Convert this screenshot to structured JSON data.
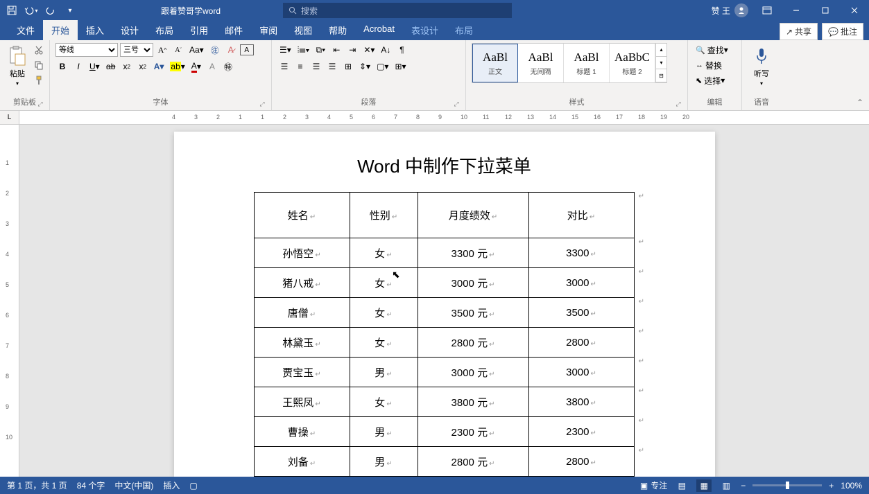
{
  "title_doc": "跟着赞哥学word",
  "search_placeholder": "搜索",
  "user_name": "赞 王",
  "tabs": [
    "文件",
    "开始",
    "插入",
    "设计",
    "布局",
    "引用",
    "邮件",
    "审阅",
    "视图",
    "帮助",
    "Acrobat",
    "表设计",
    "布局"
  ],
  "active_tab": 1,
  "share_label": "共享",
  "comment_label": "批注",
  "ribbon": {
    "clipboard": {
      "paste": "粘贴",
      "label": "剪贴板"
    },
    "font": {
      "name": "等线",
      "size": "三号",
      "label": "字体"
    },
    "paragraph": {
      "label": "段落"
    },
    "styles": {
      "label": "样式",
      "items": [
        {
          "preview": "AaBl",
          "name": "正文",
          "selected": true
        },
        {
          "preview": "AaBl",
          "name": "无间隔",
          "selected": false
        },
        {
          "preview": "AaBl",
          "name": "标题 1",
          "selected": false
        },
        {
          "preview": "AaBbC",
          "name": "标题 2",
          "selected": false
        }
      ]
    },
    "editing": {
      "find": "查找",
      "replace": "替换",
      "select": "选择",
      "label": "编辑"
    },
    "voice": {
      "dictate": "听写",
      "label": "语音"
    }
  },
  "ruler_ticks": [
    4,
    3,
    2,
    1,
    1,
    2,
    3,
    4,
    5,
    6,
    7,
    8,
    9,
    10,
    11,
    12,
    13,
    14,
    15,
    16,
    17,
    18,
    19,
    20
  ],
  "vruler_ticks": [
    1,
    2,
    3,
    4,
    5,
    6,
    7,
    8,
    9,
    10
  ],
  "doc": {
    "title": "Word 中制作下拉菜单",
    "headers": [
      "姓名",
      "性别",
      "月度绩效",
      "对比"
    ],
    "rows": [
      [
        "孙悟空",
        "女",
        "3300 元",
        "3300"
      ],
      [
        "猪八戒",
        "女",
        "3000 元",
        "3000"
      ],
      [
        "唐僧",
        "女",
        "3500 元",
        "3500"
      ],
      [
        "林黛玉",
        "女",
        "2800 元",
        "2800"
      ],
      [
        "贾宝玉",
        "男",
        "3000 元",
        "3000"
      ],
      [
        "王熙凤",
        "女",
        "3800 元",
        "3800"
      ],
      [
        "曹操",
        "男",
        "2300 元",
        "2300"
      ],
      [
        "刘备",
        "男",
        "2800 元",
        "2800"
      ]
    ]
  },
  "status": {
    "page": "第 1 页，共 1 页",
    "words": "84 个字",
    "lang": "中文(中国)",
    "mode": "插入",
    "focus": "专注",
    "zoom": "100%"
  }
}
